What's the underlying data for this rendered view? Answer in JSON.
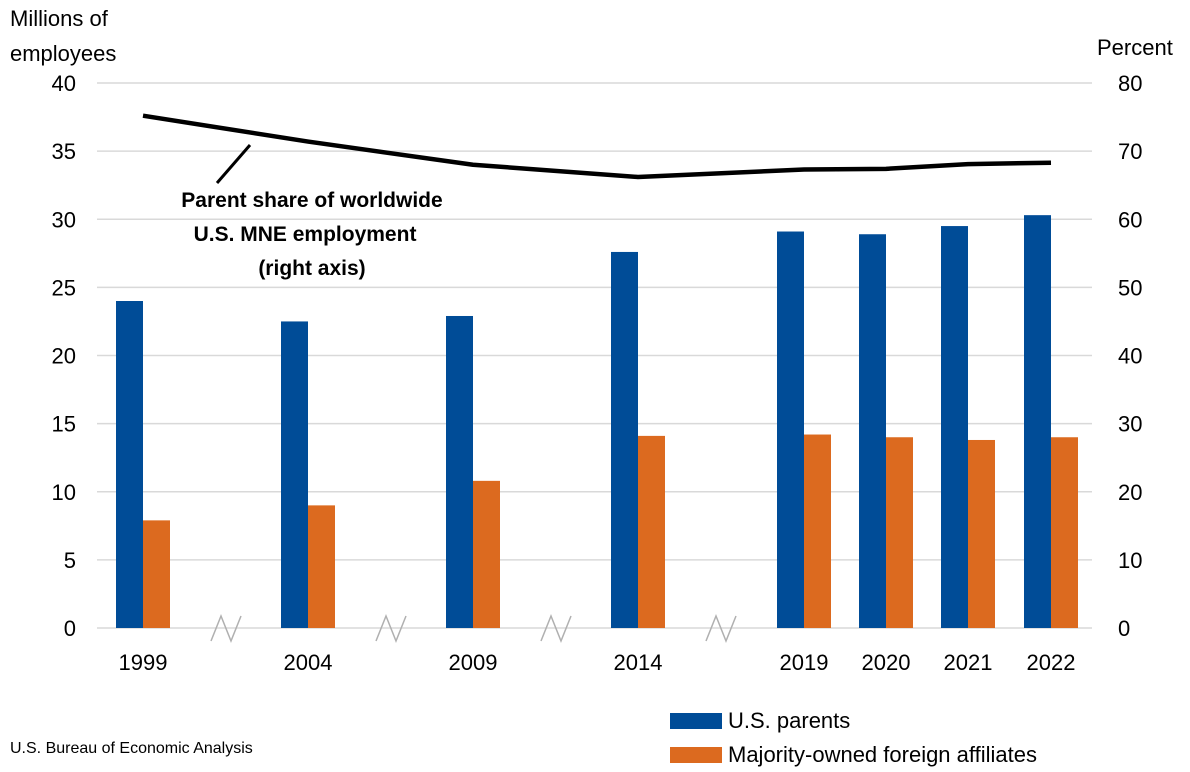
{
  "chart_data": {
    "type": "bar",
    "categories": [
      "1999",
      "2004",
      "2009",
      "2014",
      "2019",
      "2020",
      "2021",
      "2022"
    ],
    "series": [
      {
        "name": "U.S. parents",
        "axis": "left",
        "color": "#004C97",
        "values": [
          24.0,
          22.5,
          22.9,
          27.6,
          29.1,
          28.9,
          29.5,
          30.3
        ]
      },
      {
        "name": "Majority-owned foreign affiliates",
        "axis": "left",
        "color": "#DC6A1F",
        "values": [
          7.9,
          9.0,
          10.8,
          14.1,
          14.2,
          14.0,
          13.8,
          14.0
        ]
      }
    ],
    "line_series": {
      "name": "Parent share of worldwide U.S. MNE employment",
      "axis": "right",
      "color": "#000000",
      "values": [
        75.2,
        71.4,
        68.0,
        66.2,
        67.3,
        67.4,
        68.1,
        68.3
      ]
    },
    "left_axis": {
      "label_lines": [
        "Millions of",
        "employees"
      ],
      "ylim": [
        0,
        40
      ],
      "ticks": [
        "0",
        "5",
        "10",
        "15",
        "20",
        "25",
        "30",
        "35",
        "40"
      ]
    },
    "right_axis": {
      "label": "Percent",
      "ylim": [
        0,
        80
      ],
      "ticks": [
        "0",
        "10",
        "20",
        "30",
        "40",
        "50",
        "60",
        "70",
        "80"
      ]
    },
    "annotation_lines": [
      "Parent share of worldwide",
      "U.S. MNE employment",
      "(right axis)"
    ],
    "grid": true,
    "axis_breaks": true,
    "legend_position": "bottom-right"
  },
  "source": "U.S. Bureau of Economic Analysis"
}
